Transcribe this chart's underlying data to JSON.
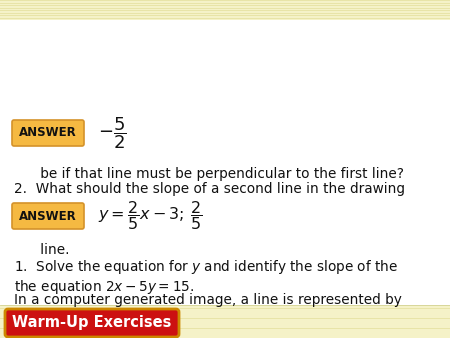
{
  "bg_stripe_color": "#f5f2c8",
  "bg_white": "#ffffff",
  "header_bg": "#cc1111",
  "header_border": "#cc8800",
  "header_text": "Warm-Up Exercises",
  "header_text_color": "#ffffff",
  "answer_box_color": "#f5b942",
  "answer_box_border": "#d4922a",
  "body_text_color": "#111111",
  "intro_line1": "In a computer generated image, a line is represented by",
  "intro_line2": "the equation $2x - 5y = 15$.",
  "q1_line1": "1.  Solve the equation for $y$ and identify the slope of the",
  "q1_line2": "      line.",
  "answer1_math": "$y = \\dfrac{2}{5}x - 3;\\,\\dfrac{2}{5}$",
  "q2_line1": "2.  What should the slope of a second line in the drawing",
  "q2_line2": "      be if that line must be perpendicular to the first line?",
  "answer2_math": "$-\\dfrac{5}{2}$",
  "fig_width": 4.5,
  "fig_height": 3.38,
  "dpi": 100
}
